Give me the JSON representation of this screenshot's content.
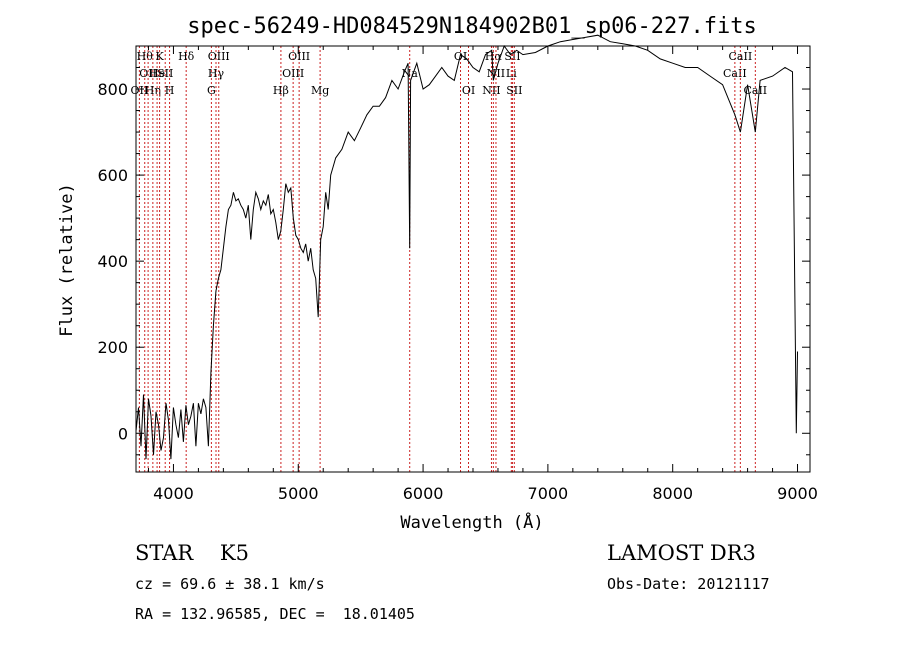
{
  "chart_data": {
    "type": "line",
    "title": "spec-56249-HD084529N184902B01_sp06-227.fits",
    "xlabel": "Wavelength (Å)",
    "ylabel": "Flux (relative)",
    "xlim": [
      3700,
      9100
    ],
    "ylim": [
      -90,
      900
    ],
    "x_ticks": [
      4000,
      5000,
      6000,
      7000,
      8000,
      9000
    ],
    "y_ticks": [
      0,
      200,
      400,
      600,
      800
    ],
    "series": [
      {
        "name": "flux",
        "x": [
          3700,
          3720,
          3740,
          3760,
          3780,
          3800,
          3820,
          3840,
          3860,
          3880,
          3900,
          3920,
          3940,
          3960,
          3980,
          4000,
          4020,
          4040,
          4060,
          4080,
          4100,
          4120,
          4140,
          4160,
          4180,
          4200,
          4220,
          4240,
          4260,
          4280,
          4300,
          4320,
          4340,
          4360,
          4380,
          4400,
          4420,
          4440,
          4460,
          4480,
          4500,
          4520,
          4540,
          4560,
          4580,
          4600,
          4620,
          4640,
          4660,
          4680,
          4700,
          4720,
          4740,
          4760,
          4780,
          4800,
          4820,
          4840,
          4860,
          4880,
          4900,
          4920,
          4940,
          4960,
          4980,
          5000,
          5020,
          5040,
          5060,
          5080,
          5100,
          5120,
          5140,
          5160,
          5180,
          5200,
          5220,
          5240,
          5260,
          5280,
          5300,
          5350,
          5400,
          5450,
          5500,
          5550,
          5600,
          5650,
          5700,
          5750,
          5800,
          5850,
          5880,
          5893,
          5900,
          5950,
          6000,
          6050,
          6100,
          6150,
          6200,
          6250,
          6300,
          6350,
          6400,
          6450,
          6500,
          6550,
          6563,
          6600,
          6650,
          6700,
          6750,
          6800,
          6900,
          7000,
          7100,
          7200,
          7300,
          7400,
          7500,
          7600,
          7700,
          7800,
          7900,
          8000,
          8100,
          8200,
          8300,
          8400,
          8498,
          8542,
          8600,
          8662,
          8700,
          8800,
          8900,
          8960,
          8990,
          9000
        ],
        "values": [
          5,
          60,
          -30,
          90,
          -60,
          80,
          40,
          -50,
          50,
          20,
          -40,
          -10,
          70,
          30,
          -60,
          60,
          20,
          -10,
          55,
          -20,
          65,
          20,
          40,
          70,
          -30,
          70,
          45,
          80,
          60,
          -30,
          140,
          250,
          330,
          360,
          380,
          430,
          480,
          520,
          530,
          560,
          540,
          545,
          530,
          520,
          500,
          530,
          450,
          520,
          560,
          545,
          520,
          540,
          530,
          555,
          510,
          520,
          490,
          450,
          470,
          520,
          580,
          560,
          570,
          500,
          460,
          450,
          430,
          420,
          440,
          400,
          430,
          380,
          360,
          270,
          450,
          480,
          560,
          520,
          600,
          620,
          640,
          660,
          700,
          680,
          710,
          740,
          760,
          760,
          780,
          820,
          800,
          840,
          860,
          430,
          820,
          860,
          800,
          810,
          830,
          850,
          830,
          820,
          880,
          870,
          850,
          840,
          880,
          890,
          820,
          860,
          900,
          880,
          890,
          880,
          885,
          900,
          910,
          915,
          920,
          925,
          910,
          905,
          900,
          890,
          870,
          860,
          850,
          850,
          830,
          810,
          740,
          700,
          810,
          700,
          820,
          830,
          850,
          840,
          0,
          190
        ]
      }
    ],
    "lines": {
      "color": "#cc2222",
      "markers": [
        {
          "wl": 3727,
          "label": "OII",
          "row": 3
        },
        {
          "wl": 3770,
          "label": "Hθ",
          "row": 1
        },
        {
          "wl": 3797,
          "label": "OII",
          "row": 2
        },
        {
          "wl": 3835,
          "label": "Hη",
          "row": 3
        },
        {
          "wl": 3869,
          "label": "He",
          "row": 2
        },
        {
          "wl": 3889,
          "label": "K",
          "row": 1
        },
        {
          "wl": 3934,
          "label": "SII",
          "row": 2
        },
        {
          "wl": 3969,
          "label": "H",
          "row": 3
        },
        {
          "wl": 4102,
          "label": "Hδ",
          "row": 1
        },
        {
          "wl": 4304,
          "label": "G",
          "row": 3
        },
        {
          "wl": 4341,
          "label": "Hγ",
          "row": 2
        },
        {
          "wl": 4363,
          "label": "OIII",
          "row": 1
        },
        {
          "wl": 4861,
          "label": "Hβ",
          "row": 3
        },
        {
          "wl": 4959,
          "label": "OIII",
          "row": 2
        },
        {
          "wl": 5007,
          "label": "OIII",
          "row": 1
        },
        {
          "wl": 5175,
          "label": "Mg",
          "row": 3
        },
        {
          "wl": 5893,
          "label": "Na",
          "row": 2
        },
        {
          "wl": 6300,
          "label": "OI",
          "row": 1
        },
        {
          "wl": 6364,
          "label": "OI",
          "row": 3
        },
        {
          "wl": 6548,
          "label": "NII",
          "row": 3
        },
        {
          "wl": 6563,
          "label": "Hα",
          "row": 1
        },
        {
          "wl": 6584,
          "label": "NII",
          "row": 2
        },
        {
          "wl": 6707,
          "label": "Li",
          "row": 2
        },
        {
          "wl": 6716,
          "label": "SII",
          "row": 1
        },
        {
          "wl": 6731,
          "label": "SII",
          "row": 3
        },
        {
          "wl": 8498,
          "label": "CaII",
          "row": 2
        },
        {
          "wl": 8542,
          "label": "CaII",
          "row": 1
        },
        {
          "wl": 8662,
          "label": "CaII",
          "row": 3
        }
      ]
    }
  },
  "info": {
    "class_line": "STAR    K5",
    "survey": "LAMOST DR3",
    "cz": "cz = 69.6 ± 38.1 km/s",
    "obs_date": "Obs-Date: 20121117",
    "radec": "RA = 132.96585, DEC =  18.01405"
  }
}
